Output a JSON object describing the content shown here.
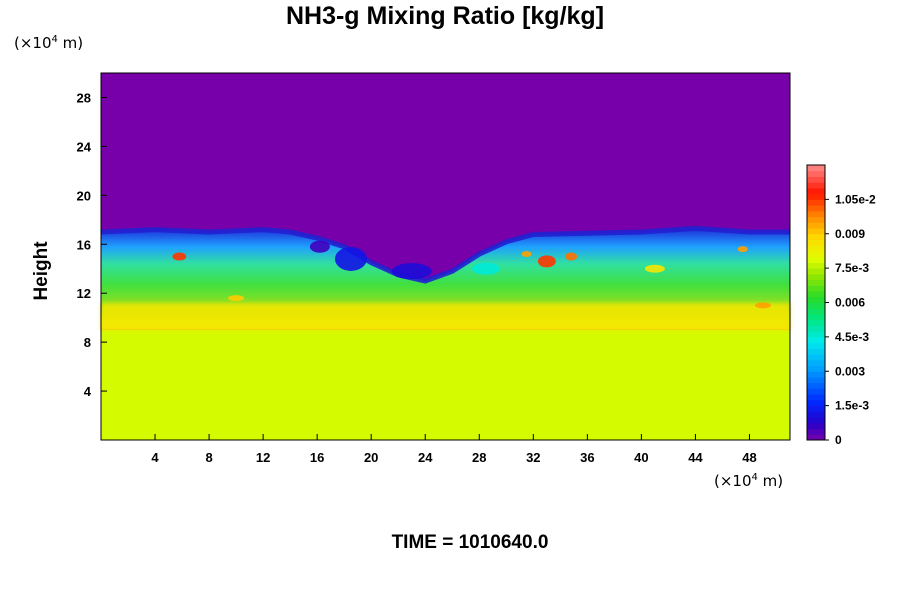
{
  "chart_data": {
    "type": "heatmap",
    "title": "NH3-g Mixing Ratio [kg/kg]",
    "ylabel": "Height",
    "x_unit": {
      "prefix": "(×10",
      "exp": "4",
      "suffix": " m)"
    },
    "y_unit": {
      "prefix": "(×10",
      "exp": "4",
      "suffix": " m)"
    },
    "xlim": [
      0,
      51
    ],
    "ylim": [
      0,
      30
    ],
    "x_ticks": [
      "4",
      "8",
      "12",
      "16",
      "20",
      "24",
      "28",
      "32",
      "36",
      "40",
      "44",
      "48"
    ],
    "y_ticks": [
      "4",
      "8",
      "12",
      "16",
      "20",
      "24",
      "28"
    ],
    "colorbar": {
      "vmin": 0,
      "vmax": 0.012,
      "tick_values": [
        0,
        0.0015,
        0.003,
        0.0045,
        0.006,
        0.0075,
        0.009,
        0.0105
      ],
      "tick_labels": [
        "0",
        "1.5e-3",
        "0.003",
        "4.5e-3",
        "0.006",
        "7.5e-3",
        "0.009",
        "1.05e-2"
      ]
    },
    "field_description_levels": {
      "above_cloud_top": 0,
      "lower_layer": 0.0078,
      "middle_layer": 0.006
    },
    "cloud_top_height": [
      [
        0,
        17.0
      ],
      [
        4,
        17.2
      ],
      [
        8,
        17.0
      ],
      [
        12,
        17.2
      ],
      [
        14,
        17.0
      ],
      [
        16,
        16.5
      ],
      [
        18,
        15.8
      ],
      [
        20,
        14.5
      ],
      [
        22,
        13.5
      ],
      [
        24,
        13.0
      ],
      [
        26,
        13.8
      ],
      [
        28,
        15.2
      ],
      [
        30,
        16.2
      ],
      [
        32,
        16.8
      ],
      [
        36,
        16.9
      ],
      [
        40,
        17.0
      ],
      [
        44,
        17.3
      ],
      [
        48,
        17.0
      ],
      [
        51,
        17.0
      ]
    ]
  },
  "footer": {
    "time_label": "TIME = 1010640.0"
  }
}
